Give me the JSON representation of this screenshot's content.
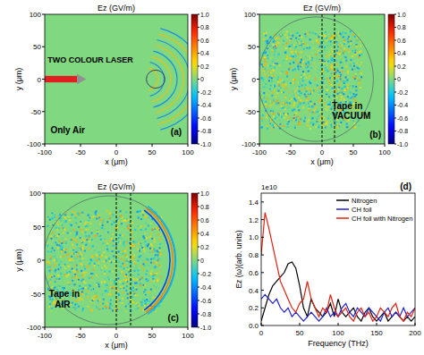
{
  "chart_data": [
    {
      "type": "heatmap",
      "title": "Ez (GV/m)",
      "x_label": "x (μm)",
      "y_label": "y (μm)",
      "xlim": [
        -100,
        100
      ],
      "ylim": [
        -100,
        100
      ],
      "xticks": [
        -100,
        -50,
        0,
        50,
        100
      ],
      "yticks": [
        -100,
        -50,
        0,
        50,
        100
      ],
      "colorbar_range": [
        -1,
        1
      ],
      "colorbar_ticks": [
        {
          "value": 1,
          "label": "1.0"
        },
        0.8,
        0.6,
        0.4,
        0.2,
        0,
        -0.2,
        -0.4,
        -0.6,
        -0.8,
        {
          "value": -1,
          "label": "-1.0"
        }
      ],
      "annotations": [
        "TWO COLOUR LASER",
        "Only Air",
        "(a)"
      ]
    },
    {
      "type": "heatmap",
      "title": "Ez (GV/m)",
      "x_label": "x (μm)",
      "y_label": "y (μm)",
      "xlim": [
        -100,
        100
      ],
      "ylim": [
        -100,
        100
      ],
      "xticks": [
        -100,
        -50,
        0,
        50,
        100
      ],
      "yticks": [
        -100,
        -50,
        0,
        50,
        100
      ],
      "colorbar_range": [
        -1,
        1
      ],
      "colorbar_ticks": [
        {
          "value": 1,
          "label": "1.0"
        },
        0.8,
        0.6,
        0.4,
        0.2,
        0,
        -0.2,
        -0.4,
        -0.6,
        -0.8,
        {
          "value": -1,
          "label": "-1.0"
        }
      ],
      "dashed_lines_x": [
        0,
        20
      ],
      "annotations": [
        "Tape in",
        "VACUUM",
        "(b)"
      ]
    },
    {
      "type": "heatmap",
      "title": "Ez (GV/m)",
      "x_label": "x (μm)",
      "y_label": "y (μm)",
      "xlim": [
        -100,
        100
      ],
      "ylim": [
        -100,
        100
      ],
      "xticks": [
        -100,
        -50,
        0,
        50,
        100
      ],
      "yticks": [
        -100,
        -50,
        0,
        50,
        100
      ],
      "colorbar_range": [
        -1,
        1
      ],
      "colorbar_ticks": [
        {
          "value": 1,
          "label": "1.0"
        },
        0.8,
        0.6,
        0.4,
        0.2,
        0,
        -0.2,
        -0.4,
        -0.6,
        -0.8,
        {
          "value": -1,
          "label": "-1.0"
        }
      ],
      "dashed_lines_x": [
        0,
        20
      ],
      "annotations": [
        "Tape in",
        "AIR",
        "(c)"
      ]
    },
    {
      "type": "line",
      "x_label": "Frequency (THz)",
      "y_label": "Ez (ω)(arb. units)",
      "multiplier": "1e10",
      "annotations": [
        "(d)"
      ],
      "x": [
        0,
        5,
        10,
        15,
        20,
        25,
        30,
        35,
        40,
        45,
        50,
        55,
        60,
        65,
        70,
        75,
        80,
        85,
        90,
        95,
        100,
        105,
        110,
        115,
        120,
        125,
        130,
        135,
        140,
        145,
        150,
        155,
        160,
        165,
        170,
        175,
        180,
        185,
        190,
        195,
        200
      ],
      "xlim": [
        0,
        200
      ],
      "ylim": [
        0,
        1.5
      ],
      "xticks": [
        0,
        50,
        100,
        150,
        200
      ],
      "yticks": [
        {
          "value": 0,
          "label": "0.0"
        },
        0.2,
        0.4,
        0.6,
        0.8,
        {
          "value": 1,
          "label": "1.0"
        },
        1.2,
        1.4
      ],
      "legend": "upper right",
      "series": [
        {
          "name": "Nitrogen",
          "color": "#000000",
          "values": [
            0.05,
            0.2,
            0.35,
            0.45,
            0.5,
            0.55,
            0.6,
            0.7,
            0.72,
            0.65,
            0.45,
            0.2,
            0.1,
            0.3,
            0.2,
            0.15,
            0.1,
            0.15,
            0.25,
            0.1,
            0.3,
            0.15,
            0.1,
            0.15,
            0.2,
            0.1,
            0.05,
            0.15,
            0.2,
            0.1,
            0.05,
            0.1,
            0.15,
            0.05,
            0.1,
            0.15,
            0.1,
            0.05,
            0.1,
            0.05,
            0.1
          ]
        },
        {
          "name": "CH foil",
          "color": "#1f1fd0",
          "values": [
            0.3,
            0.35,
            0.3,
            0.25,
            0.3,
            0.2,
            0.15,
            0.2,
            0.1,
            0.15,
            0.1,
            0.05,
            0.1,
            0.15,
            0.1,
            0.05,
            0.1,
            0.2,
            0.1,
            0.15,
            0.1,
            0.2,
            0.25,
            0.15,
            0.1,
            0.2,
            0.15,
            0.1,
            0.2,
            0.15,
            0.1,
            0.05,
            0.15,
            0.2,
            0.1,
            0.15,
            0.1,
            0.2,
            0.1,
            0.15,
            0.2
          ]
        },
        {
          "name": "CH foil with Nitrogen",
          "color": "#e02010",
          "values": [
            0.8,
            1.28,
            1.1,
            0.9,
            0.7,
            0.5,
            0.4,
            0.3,
            0.2,
            0.15,
            0.25,
            0.3,
            0.5,
            0.3,
            0.2,
            0.1,
            0.2,
            0.15,
            0.35,
            0.2,
            0.1,
            0.15,
            0.2,
            0.1,
            0.05,
            0.15,
            0.2,
            0.1,
            0.15,
            0.05,
            0.1,
            0.2,
            0.15,
            0.1,
            0.2,
            0.25,
            0.1,
            0.05,
            0.15,
            0.1,
            0.2
          ]
        }
      ]
    }
  ]
}
